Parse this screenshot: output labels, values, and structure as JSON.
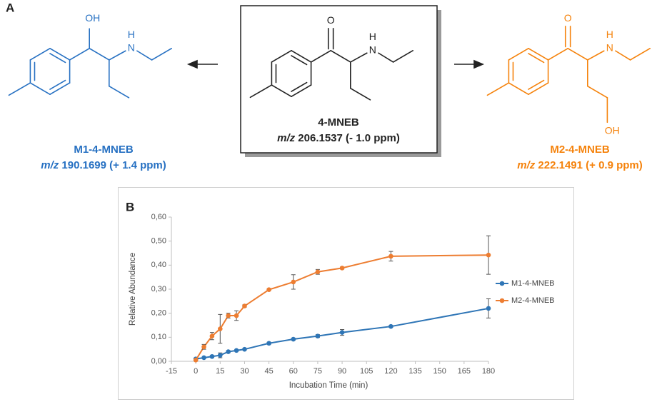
{
  "panel_labels": [
    "A",
    "B"
  ],
  "molecules": [
    {
      "name": "M1-4-MNEB",
      "mass_prefix": "m/z",
      "mass": "190.1699 (+ 1.4 ppm)",
      "atoms": [
        "OH",
        "H",
        "N"
      ],
      "color": "#2670c2"
    },
    {
      "name": "4-MNEB",
      "mass_prefix": "m/z",
      "mass": "206.1537 (- 1.0 ppm)",
      "atoms": [
        "O",
        "H",
        "N"
      ],
      "color": "#222222"
    },
    {
      "name": "M2-4-MNEB",
      "mass_prefix": "m/z",
      "mass": "222.1491 (+ 0.9 ppm)",
      "atoms": [
        "O",
        "H",
        "N",
        "OH"
      ],
      "color": "#f5820b"
    }
  ],
  "chart_data": {
    "type": "line",
    "x_label": "Incubation Time (min)",
    "y_label": "Relative Abundance",
    "x": [
      0,
      5,
      10,
      15,
      20,
      25,
      30,
      45,
      60,
      75,
      90,
      120,
      180
    ],
    "series": [
      {
        "name": "M1-4-MNEB",
        "color": "#2e75b6",
        "values": [
          0.01,
          0.015,
          0.02,
          0.025,
          0.04,
          0.045,
          0.05,
          0.075,
          0.092,
          0.105,
          0.12,
          0.145,
          0.22
        ],
        "errors": [
          0.003,
          0.003,
          0.004,
          0.01,
          0.004,
          0.003,
          0.003,
          0.004,
          0.004,
          0.006,
          0.012,
          0.004,
          0.04
        ]
      },
      {
        "name": "M2-4-MNEB",
        "color": "#ed7d31",
        "values": [
          0.005,
          0.06,
          0.105,
          0.135,
          0.19,
          0.19,
          0.23,
          0.298,
          0.33,
          0.372,
          0.388,
          0.437,
          0.442
        ],
        "errors": [
          0.003,
          0.01,
          0.015,
          0.06,
          0.01,
          0.02,
          0.005,
          0.004,
          0.03,
          0.01,
          0.004,
          0.02,
          0.08
        ]
      }
    ],
    "xlim": [
      -15,
      180
    ],
    "xticks": [
      -15,
      0,
      15,
      30,
      45,
      60,
      75,
      90,
      105,
      120,
      135,
      150,
      165,
      180
    ],
    "ylim": [
      0,
      0.6
    ],
    "yticks": [
      {
        "value": 0,
        "label": "0,00"
      },
      {
        "value": 0.1,
        "label": "0,10"
      },
      {
        "value": 0.2,
        "label": "0,20"
      },
      {
        "value": 0.3,
        "label": "0,30"
      },
      {
        "value": 0.4,
        "label": "0,40"
      },
      {
        "value": 0.5,
        "label": "0,50"
      },
      {
        "value": 0.6,
        "label": "0,60"
      }
    ],
    "legend": "right"
  }
}
